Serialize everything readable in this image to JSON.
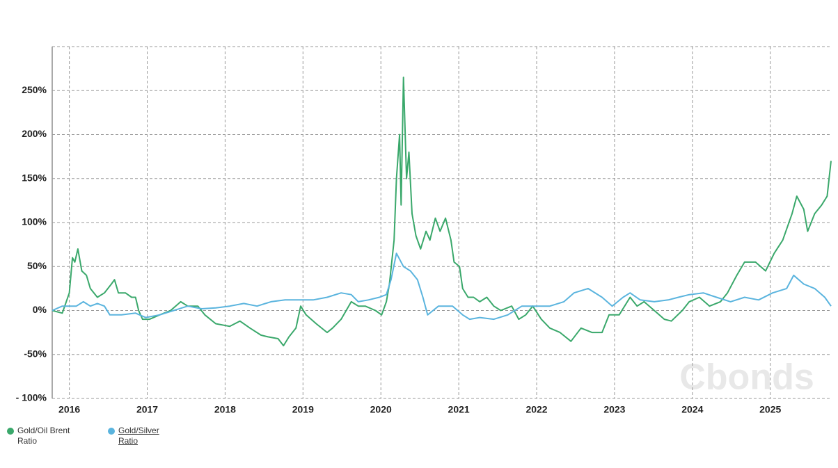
{
  "chart_data": {
    "type": "line",
    "watermark": "Cbonds",
    "xlim": [
      2015.78,
      2025.78
    ],
    "xticks": [
      2016,
      2017,
      2018,
      2019,
      2020,
      2021,
      2022,
      2023,
      2024,
      2025
    ],
    "ylim": [
      -100,
      300
    ],
    "yticks": [
      {
        "value": -100,
        "label": "- 100%"
      },
      {
        "value": -50,
        "label": "-50%"
      },
      {
        "value": 0,
        "label": "0%"
      },
      {
        "value": 50,
        "label": "50%"
      },
      {
        "value": 100,
        "label": "100%"
      },
      {
        "value": 150,
        "label": "150%"
      },
      {
        "value": 200,
        "label": "200%"
      },
      {
        "value": 250,
        "label": "250%"
      }
    ],
    "grid": true,
    "series": [
      {
        "name": "Gold/Oil Brent Ratio",
        "color": "#3aa86b",
        "x": [
          2015.78,
          2015.91,
          2016.0,
          2016.04,
          2016.07,
          2016.11,
          2016.16,
          2016.22,
          2016.27,
          2016.36,
          2016.45,
          2016.54,
          2016.58,
          2016.63,
          2016.72,
          2016.8,
          2016.85,
          2016.89,
          2016.94,
          2017.03,
          2017.16,
          2017.3,
          2017.43,
          2017.52,
          2017.65,
          2017.74,
          2017.88,
          2018.06,
          2018.19,
          2018.32,
          2018.46,
          2018.55,
          2018.68,
          2018.75,
          2018.82,
          2018.91,
          2018.97,
          2019.04,
          2019.17,
          2019.31,
          2019.38,
          2019.49,
          2019.62,
          2019.71,
          2019.8,
          2019.93,
          2020.01,
          2020.07,
          2020.11,
          2020.17,
          2020.2,
          2020.24,
          2020.26,
          2020.29,
          2020.33,
          2020.36,
          2020.4,
          2020.45,
          2020.51,
          2020.58,
          2020.63,
          2020.7,
          2020.76,
          2020.83,
          2020.9,
          2020.94,
          2021.01,
          2021.05,
          2021.12,
          2021.19,
          2021.27,
          2021.36,
          2021.45,
          2021.54,
          2021.68,
          2021.77,
          2021.86,
          2021.95,
          2022.06,
          2022.17,
          2022.3,
          2022.44,
          2022.57,
          2022.71,
          2022.84,
          2022.93,
          2023.06,
          2023.2,
          2023.29,
          2023.38,
          2023.51,
          2023.64,
          2023.73,
          2023.87,
          2023.96,
          2024.09,
          2024.22,
          2024.36,
          2024.45,
          2024.57,
          2024.67,
          2024.81,
          2024.94,
          2025.05,
          2025.16,
          2025.28,
          2025.34,
          2025.43,
          2025.48,
          2025.57,
          2025.66,
          2025.73,
          2025.78
        ],
        "values": [
          0,
          -3,
          20,
          60,
          55,
          70,
          45,
          40,
          25,
          15,
          20,
          30,
          35,
          20,
          20,
          15,
          15,
          0,
          -10,
          -10,
          -5,
          0,
          10,
          5,
          5,
          -5,
          -15,
          -18,
          -12,
          -20,
          -28,
          -30,
          -32,
          -40,
          -30,
          -20,
          5,
          -5,
          -15,
          -25,
          -20,
          -10,
          10,
          5,
          5,
          0,
          -5,
          10,
          30,
          80,
          150,
          200,
          120,
          265,
          150,
          180,
          110,
          85,
          70,
          90,
          80,
          105,
          90,
          105,
          80,
          55,
          50,
          25,
          15,
          15,
          10,
          15,
          5,
          0,
          5,
          -10,
          -5,
          5,
          -10,
          -20,
          -25,
          -35,
          -20,
          -25,
          -25,
          -5,
          -5,
          15,
          5,
          10,
          0,
          -10,
          -12,
          0,
          10,
          15,
          5,
          10,
          20,
          40,
          55,
          55,
          45,
          65,
          80,
          110,
          130,
          115,
          90,
          110,
          120,
          130,
          170
        ]
      },
      {
        "name": "Gold/Silver Ratio",
        "color": "#5ab4de",
        "x": [
          2015.78,
          2015.91,
          2016.09,
          2016.18,
          2016.27,
          2016.36,
          2016.45,
          2016.52,
          2016.67,
          2016.85,
          2016.98,
          2017.16,
          2017.34,
          2017.52,
          2017.7,
          2017.88,
          2018.06,
          2018.24,
          2018.41,
          2018.59,
          2018.77,
          2018.95,
          2019.13,
          2019.31,
          2019.49,
          2019.62,
          2019.71,
          2019.84,
          2019.98,
          2020.07,
          2020.13,
          2020.2,
          2020.29,
          2020.38,
          2020.47,
          2020.54,
          2020.6,
          2020.67,
          2020.74,
          2020.92,
          2021.05,
          2021.14,
          2021.27,
          2021.45,
          2021.63,
          2021.81,
          2021.99,
          2022.17,
          2022.35,
          2022.48,
          2022.66,
          2022.84,
          2022.97,
          2023.11,
          2023.2,
          2023.33,
          2023.51,
          2023.69,
          2023.82,
          2023.96,
          2024.14,
          2024.31,
          2024.49,
          2024.67,
          2024.85,
          2025.03,
          2025.21,
          2025.3,
          2025.43,
          2025.57,
          2025.7,
          2025.78
        ],
        "values": [
          0,
          5,
          5,
          10,
          5,
          8,
          5,
          -5,
          -5,
          -3,
          -8,
          -5,
          0,
          5,
          2,
          3,
          5,
          8,
          5,
          10,
          12,
          12,
          12,
          15,
          20,
          18,
          10,
          12,
          15,
          18,
          35,
          65,
          50,
          45,
          35,
          15,
          -5,
          0,
          5,
          5,
          -5,
          -10,
          -8,
          -10,
          -5,
          5,
          5,
          5,
          10,
          20,
          25,
          15,
          5,
          15,
          20,
          12,
          10,
          12,
          15,
          18,
          20,
          15,
          10,
          15,
          12,
          20,
          25,
          40,
          30,
          25,
          15,
          5
        ]
      }
    ]
  }
}
